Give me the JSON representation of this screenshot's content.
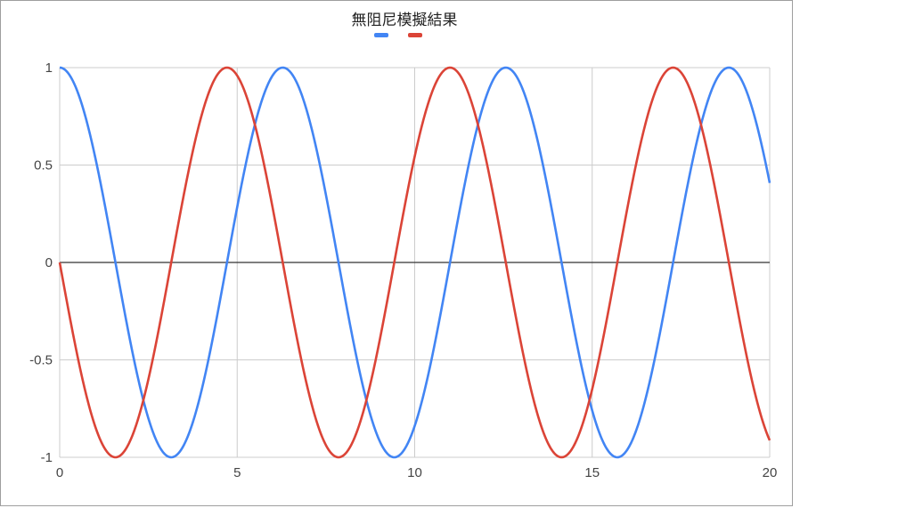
{
  "chart_data": {
    "type": "line",
    "title": "無阻尼模擬結果",
    "xlabel": "",
    "ylabel": "",
    "xlim": [
      0,
      20
    ],
    "ylim": [
      -1,
      1
    ],
    "x_ticks": [
      "0",
      "5",
      "10",
      "15",
      "20"
    ],
    "y_ticks": [
      "1",
      "0.5",
      "0",
      "-0.5",
      "-1"
    ],
    "grid": true,
    "legend": "top-center",
    "series": [
      {
        "color": "#4285f4",
        "function": "cos(t)",
        "x": [
          0,
          1,
          2,
          3,
          4,
          5,
          6,
          7,
          8,
          9,
          10,
          11,
          12,
          13,
          14,
          15,
          16,
          17,
          18,
          19,
          20
        ],
        "values": [
          1.0,
          0.54,
          -0.42,
          -0.99,
          -0.65,
          0.28,
          0.96,
          0.75,
          -0.15,
          -0.91,
          -0.84,
          0.0,
          0.84,
          0.91,
          0.14,
          -0.76,
          -0.96,
          -0.28,
          0.66,
          0.99,
          0.41
        ]
      },
      {
        "color": "#db4437",
        "function": "-sin(t)",
        "x": [
          0,
          1,
          2,
          3,
          4,
          5,
          6,
          7,
          8,
          9,
          10,
          11,
          12,
          13,
          14,
          15,
          16,
          17,
          18,
          19,
          20
        ],
        "values": [
          0.0,
          -0.84,
          -0.91,
          -0.14,
          0.76,
          0.96,
          0.28,
          -0.66,
          -0.99,
          -0.41,
          0.54,
          1.0,
          0.54,
          -0.42,
          -0.99,
          -0.65,
          0.29,
          0.96,
          0.75,
          -0.15,
          -0.91
        ]
      }
    ]
  }
}
